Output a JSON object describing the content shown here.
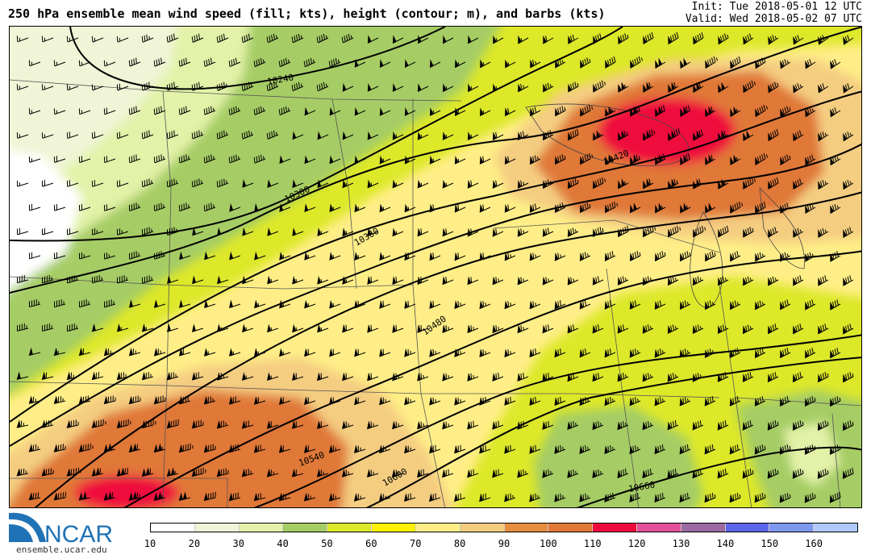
{
  "header": {
    "title": "250 hPa ensemble mean wind speed (fill; kts), height (contour; m), and barbs (kts)",
    "init": "Init: Tue 2018-05-01 12 UTC",
    "valid": "Valid: Wed 2018-05-02 07 UTC"
  },
  "contours": {
    "labels": [
      "10240",
      "10300",
      "10360",
      "10420",
      "10480",
      "10540",
      "10600",
      "10660"
    ]
  },
  "colorbar": {
    "ticks": [
      "10",
      "20",
      "30",
      "40",
      "50",
      "60",
      "70",
      "80",
      "90",
      "100",
      "110",
      "120",
      "130",
      "140",
      "150",
      "160"
    ],
    "colors": [
      "#ffffff",
      "#eff5d6",
      "#e3f2a8",
      "#a6cd65",
      "#dde829",
      "#fff100",
      "#ffee87",
      "#f4cd81",
      "#e78d3f",
      "#e07838",
      "#ef0a3d",
      "#e0509b",
      "#9a6aa1",
      "#5c65ea",
      "#7c98ef",
      "#b0c9fa"
    ]
  },
  "logo": {
    "name": "NCAR",
    "url": "ensemble.ucar.edu"
  }
}
